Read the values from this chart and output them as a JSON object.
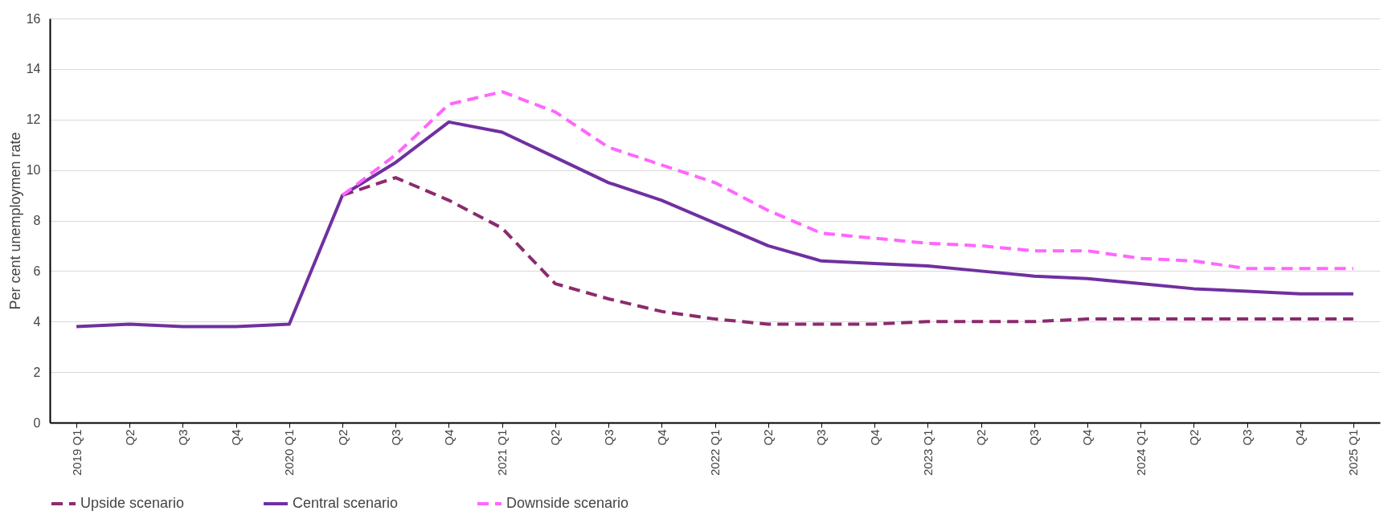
{
  "chart_data": {
    "type": "line",
    "ylabel": "Per cent unemploymen rate",
    "categories": [
      "2019 Q1",
      "Q2",
      "Q3",
      "Q4",
      "2020 Q1",
      "Q2",
      "Q3",
      "Q4",
      "2021 Q1",
      "Q2",
      "Q3",
      "Q4",
      "2022 Q1",
      "Q2",
      "Q3",
      "Q4",
      "2023 Q1",
      "Q2",
      "Q3",
      "Q4",
      "2024 Q1",
      "Q2",
      "Q3",
      "Q4",
      "2025 Q1"
    ],
    "series": [
      {
        "name": "Upside scenario",
        "color": "#8b2b6e",
        "line_style": "dashed",
        "values": [
          null,
          null,
          null,
          null,
          null,
          9.0,
          9.7,
          8.8,
          7.7,
          5.5,
          4.9,
          4.4,
          4.1,
          3.9,
          3.9,
          3.9,
          4.0,
          4.0,
          4.0,
          4.1,
          4.1,
          4.1,
          4.1,
          4.1,
          4.1
        ]
      },
      {
        "name": "Central scenario",
        "color": "#7030a0",
        "line_style": "solid",
        "values": [
          3.8,
          3.9,
          3.8,
          3.8,
          3.9,
          9.0,
          10.3,
          11.9,
          11.5,
          10.5,
          9.5,
          8.8,
          7.9,
          7.0,
          6.4,
          6.3,
          6.2,
          6.0,
          5.8,
          5.7,
          5.5,
          5.3,
          5.2,
          5.1,
          5.1
        ]
      },
      {
        "name": "Downside scenario",
        "color": "#ff66ff",
        "line_style": "dashed",
        "values": [
          null,
          null,
          null,
          null,
          null,
          9.0,
          10.6,
          12.6,
          13.1,
          12.3,
          10.9,
          10.2,
          9.5,
          8.4,
          7.5,
          7.3,
          7.1,
          7.0,
          6.8,
          6.8,
          6.5,
          6.4,
          6.1,
          6.1,
          6.1
        ]
      }
    ],
    "ylim": [
      0,
      16
    ],
    "yticks": [
      0,
      2,
      4,
      6,
      8,
      10,
      12,
      14,
      16
    ],
    "grid": "y",
    "legend": "bottom",
    "marker": "none"
  }
}
